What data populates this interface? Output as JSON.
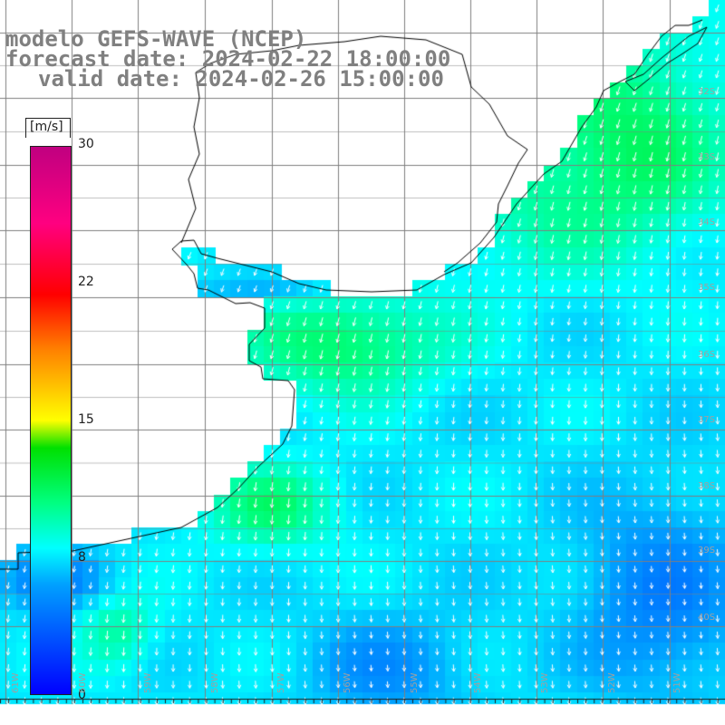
{
  "title": {
    "model": "modelo GEFS-WAVE (NCEP)",
    "forecast": "forecast date: 2024-02-22 18:00:00",
    "valid": "valid date: 2024-02-26 15:00:00"
  },
  "colorbar": {
    "unit": "[m/s]",
    "min": 0,
    "max": 30,
    "ticks": [
      "30",
      "22",
      "15",
      "8",
      "0"
    ],
    "tick_values": [
      30,
      22,
      15,
      8,
      0
    ],
    "stops": [
      {
        "v": 0,
        "c": "#0000ff"
      },
      {
        "v": 6,
        "c": "#00a0ff"
      },
      {
        "v": 8,
        "c": "#00ffff"
      },
      {
        "v": 10.5,
        "c": "#00ff80"
      },
      {
        "v": 13.5,
        "c": "#00e000"
      },
      {
        "v": 15,
        "c": "#ffff00"
      },
      {
        "v": 19,
        "c": "#ff8000"
      },
      {
        "v": 22,
        "c": "#ff0000"
      },
      {
        "v": 26,
        "c": "#ff0080"
      },
      {
        "v": 30,
        "c": "#c00080"
      }
    ]
  },
  "map": {
    "region": "South Atlantic, Rio de la Plata to southern Brazil",
    "lon_range": [
      -62,
      -44
    ],
    "lat_range": [
      -42,
      -29
    ],
    "grid_step_deg": 2,
    "lat_labels": [
      "32S",
      "33S",
      "34S",
      "35S",
      "36S",
      "37S",
      "38S",
      "39S",
      "40S"
    ],
    "lon_labels": [
      "61W",
      "60W",
      "59W",
      "58W",
      "57W",
      "56W",
      "55W",
      "54W",
      "53W",
      "52W",
      "51W"
    ],
    "land_color": "#ffffff",
    "coast_color": "#000000",
    "grid_color": "#808080",
    "arrow_color": "#ffffff"
  }
}
